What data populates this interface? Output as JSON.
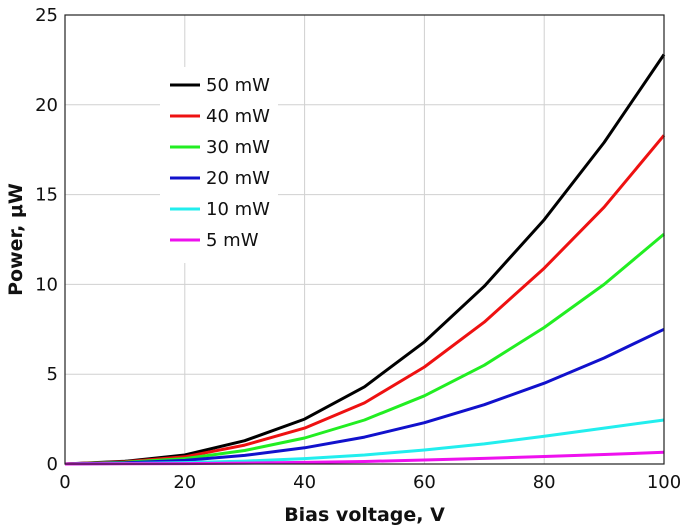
{
  "chart_data": {
    "type": "line",
    "xlabel": "Bias voltage, V",
    "ylabel": "Power, μW",
    "xlim": [
      0,
      100
    ],
    "ylim": [
      0,
      25
    ],
    "xticks": [
      0,
      20,
      40,
      60,
      80,
      100
    ],
    "yticks": [
      0,
      5,
      10,
      15,
      20,
      25
    ],
    "grid": true,
    "legend_position": "upper-left",
    "x": [
      0,
      10,
      20,
      30,
      40,
      50,
      60,
      70,
      80,
      90,
      100
    ],
    "series": [
      {
        "name": "50 mW",
        "color": "#000000",
        "values": [
          0.0,
          0.15,
          0.5,
          1.3,
          2.5,
          4.3,
          6.8,
          9.9,
          13.6,
          17.9,
          22.8
        ]
      },
      {
        "name": "40 mW",
        "color": "#ee1111",
        "values": [
          0.0,
          0.12,
          0.4,
          1.05,
          2.0,
          3.4,
          5.4,
          7.9,
          10.9,
          14.3,
          18.3
        ]
      },
      {
        "name": "30 mW",
        "color": "#22ee22",
        "values": [
          0.0,
          0.1,
          0.3,
          0.75,
          1.45,
          2.45,
          3.8,
          5.5,
          7.6,
          10.0,
          12.8
        ]
      },
      {
        "name": "20 mW",
        "color": "#1111cc",
        "values": [
          0.0,
          0.06,
          0.2,
          0.48,
          0.9,
          1.5,
          2.3,
          3.3,
          4.5,
          5.9,
          7.5
        ]
      },
      {
        "name": "10 mW",
        "color": "#22eeee",
        "values": [
          0.0,
          0.03,
          0.08,
          0.16,
          0.3,
          0.5,
          0.78,
          1.12,
          1.55,
          2.0,
          2.45
        ]
      },
      {
        "name": "5 mW",
        "color": "#ee11ee",
        "values": [
          0.0,
          0.01,
          0.02,
          0.05,
          0.09,
          0.14,
          0.22,
          0.31,
          0.42,
          0.53,
          0.65
        ]
      }
    ]
  }
}
